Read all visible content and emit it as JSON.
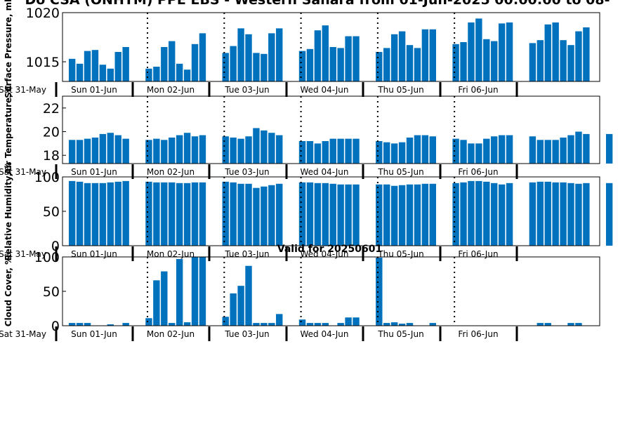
{
  "title": "Do CSA (ONHTM) PPE EBS  - Western Sahara from 01-Jun-2025 00:00:00 to 08-",
  "colors": {
    "bar": "#0072bd",
    "axis": "#000000",
    "background": "#ffffff"
  },
  "chart_data": [
    {
      "type": "bar",
      "id": "pressure",
      "title": "",
      "ylabel": "Surface Pressure, mb",
      "ylim": [
        1013,
        1020
      ],
      "yticks": [
        1015,
        1020
      ],
      "xlabel": "",
      "day_labels": [
        "Sat 31-May",
        "Sun 01-Jun",
        "Mon 02-Jun",
        "Tue 03-Jun",
        "Wed 04-Jun",
        "Thu 05-Jun",
        "Fri 06-Jun"
      ],
      "values": [
        1015.3,
        1014.8,
        1016.1,
        1016.2,
        1014.7,
        1014.3,
        1016.0,
        1016.5,
        1014.3,
        1014.5,
        1016.5,
        1017.1,
        1014.8,
        1014.2,
        1016.8,
        1017.9,
        1015.9,
        1016.6,
        1018.4,
        1017.8,
        1015.9,
        1015.8,
        1017.9,
        1018.4,
        1016.1,
        1016.3,
        1018.2,
        1018.7,
        1016.5,
        1016.4,
        1017.6,
        1017.6,
        1016.0,
        1016.4,
        1017.8,
        1018.1,
        1016.7,
        1016.4,
        1018.3,
        1018.3,
        1016.8,
        1017.0,
        1019.0,
        1019.4,
        1017.3,
        1017.1,
        1018.9,
        1019.0,
        1016.9,
        1017.2,
        1018.8,
        1019.0,
        1017.2,
        1016.7,
        1018.1,
        1018.5
      ]
    },
    {
      "type": "bar",
      "id": "temperature",
      "title": "",
      "ylabel": "Air Temperature, C",
      "ylim": [
        17.3,
        23.0
      ],
      "yticks": [
        18,
        20,
        22
      ],
      "xlabel": "",
      "day_labels": [
        "Sat 31-May",
        "Sun 01-Jun",
        "Mon 02-Jun",
        "Tue 03-Jun",
        "Wed 04-Jun",
        "Thu 05-Jun",
        "Fri 06-Jun"
      ],
      "values": [
        19.3,
        19.3,
        19.4,
        19.5,
        19.8,
        19.9,
        19.7,
        19.4,
        19.3,
        19.4,
        19.3,
        19.5,
        19.7,
        19.9,
        19.6,
        19.7,
        19.6,
        19.5,
        19.4,
        19.6,
        20.3,
        20.1,
        19.9,
        19.7,
        19.2,
        19.2,
        19.0,
        19.2,
        19.4,
        19.4,
        19.4,
        19.4,
        19.2,
        19.1,
        19.0,
        19.1,
        19.5,
        19.7,
        19.7,
        19.6,
        19.4,
        19.3,
        19.0,
        19.0,
        19.4,
        19.6,
        19.7,
        19.7,
        19.6,
        19.3,
        19.3,
        19.3,
        19.5,
        19.7,
        20.0,
        19.8,
        19.8
      ]
    },
    {
      "type": "bar",
      "id": "humidity",
      "title": "",
      "ylabel": "Relative Humidity, %",
      "ylim": [
        0,
        100
      ],
      "yticks": [
        0,
        50,
        100
      ],
      "xlabel": "",
      "day_labels": [
        "Sat 31-May",
        "Sun 01-Jun",
        "Mon 02-Jun",
        "Tue 03-Jun",
        "Wed 04-Jun",
        "Thu 05-Jun",
        "Fri 06-Jun"
      ],
      "values": [
        94,
        93,
        91,
        91,
        91,
        92,
        93,
        94,
        93,
        92,
        92,
        92,
        91,
        91,
        92,
        92,
        93,
        92,
        90,
        90,
        84,
        86,
        88,
        90,
        92,
        92,
        91,
        91,
        90,
        89,
        89,
        89,
        89,
        89,
        87,
        88,
        89,
        89,
        90,
        90,
        91,
        92,
        94,
        94,
        93,
        91,
        89,
        91,
        92,
        93,
        93,
        92,
        92,
        91,
        90,
        91,
        91
      ]
    },
    {
      "type": "bar",
      "id": "cloud",
      "title": "Valid for 20250601",
      "ylabel": "Cloud Cover, %",
      "ylim": [
        0,
        100
      ],
      "yticks": [
        0,
        50,
        100
      ],
      "xlabel": "",
      "day_labels": [
        "Sat 31-May",
        "Sun 01-Jun",
        "Mon 02-Jun",
        "Tue 03-Jun",
        "Wed 04-Jun",
        "Thu 05-Jun",
        "Fri 06-Jun"
      ],
      "values": [
        4,
        4,
        4,
        0,
        0,
        2,
        0,
        4,
        11,
        66,
        79,
        4,
        97,
        5,
        100,
        100,
        13,
        47,
        58,
        87,
        4,
        4,
        4,
        17,
        9,
        4,
        4,
        4,
        0,
        4,
        12,
        12,
        99,
        4,
        5,
        3,
        4,
        0,
        0,
        4,
        0,
        0,
        0,
        0,
        0,
        0,
        0,
        0,
        0,
        4,
        4,
        0,
        0,
        4,
        4,
        0,
        0
      ]
    }
  ]
}
